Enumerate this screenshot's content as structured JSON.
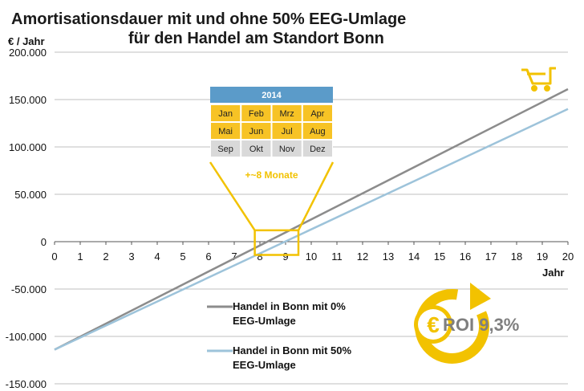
{
  "chart_data": {
    "type": "line",
    "title_lines": [
      "Amortisationsdauer mit und ohne 50% EEG-Umlage",
      "für den Handel am Standort Bonn"
    ],
    "ylabel": "€ / Jahr",
    "xlabel": "Jahr",
    "xlim": [
      0,
      20
    ],
    "ylim": [
      -150000,
      200000
    ],
    "x_ticks": [
      0,
      1,
      2,
      3,
      4,
      5,
      6,
      7,
      8,
      9,
      10,
      11,
      12,
      13,
      14,
      15,
      16,
      17,
      18,
      19,
      20
    ],
    "y_ticks": [
      200000,
      150000,
      100000,
      50000,
      0,
      -50000,
      -100000,
      -150000
    ],
    "y_tick_labels": [
      "200.000",
      "150.000",
      "100.000",
      "50.000",
      "0",
      "-50.000",
      "-100.000",
      "-150.000"
    ],
    "grid": "horizontal",
    "series": [
      {
        "name_lines": [
          "Handel in Bonn mit 0%",
          "EEG-Umlage"
        ],
        "color": "#8c8c8c",
        "x": [
          0,
          20
        ],
        "y": [
          -114000,
          161000
        ]
      },
      {
        "name_lines": [
          "Handel in Bonn mit 50%",
          "EEG-Umlage"
        ],
        "color": "#9dc3da",
        "x": [
          0,
          20
        ],
        "y": [
          -114000,
          140000
        ]
      }
    ]
  },
  "inset": {
    "year": "2014",
    "months": [
      [
        "Jan",
        "Feb",
        "Mrz",
        "Apr"
      ],
      [
        "Mai",
        "Jun",
        "Jul",
        "Aug"
      ],
      [
        "Sep",
        "Okt",
        "Nov",
        "Dez"
      ]
    ],
    "delta_label": "+~8 Monate",
    "zoom_x_range": [
      7.8,
      9.5
    ]
  },
  "roi": {
    "label": "ROI 9,3%"
  },
  "colors": {
    "accent": "#f2c200",
    "calendar_header": "#5b9bc9",
    "calendar_month": "#f7c325",
    "calendar_grey": "#d9d9d9",
    "grid": "#bfbfbf",
    "roi_text": "#7f7f7f"
  },
  "icons": {
    "cart": "shopping-cart-icon",
    "roi_coin": "euro-coin-arrow-icon"
  }
}
